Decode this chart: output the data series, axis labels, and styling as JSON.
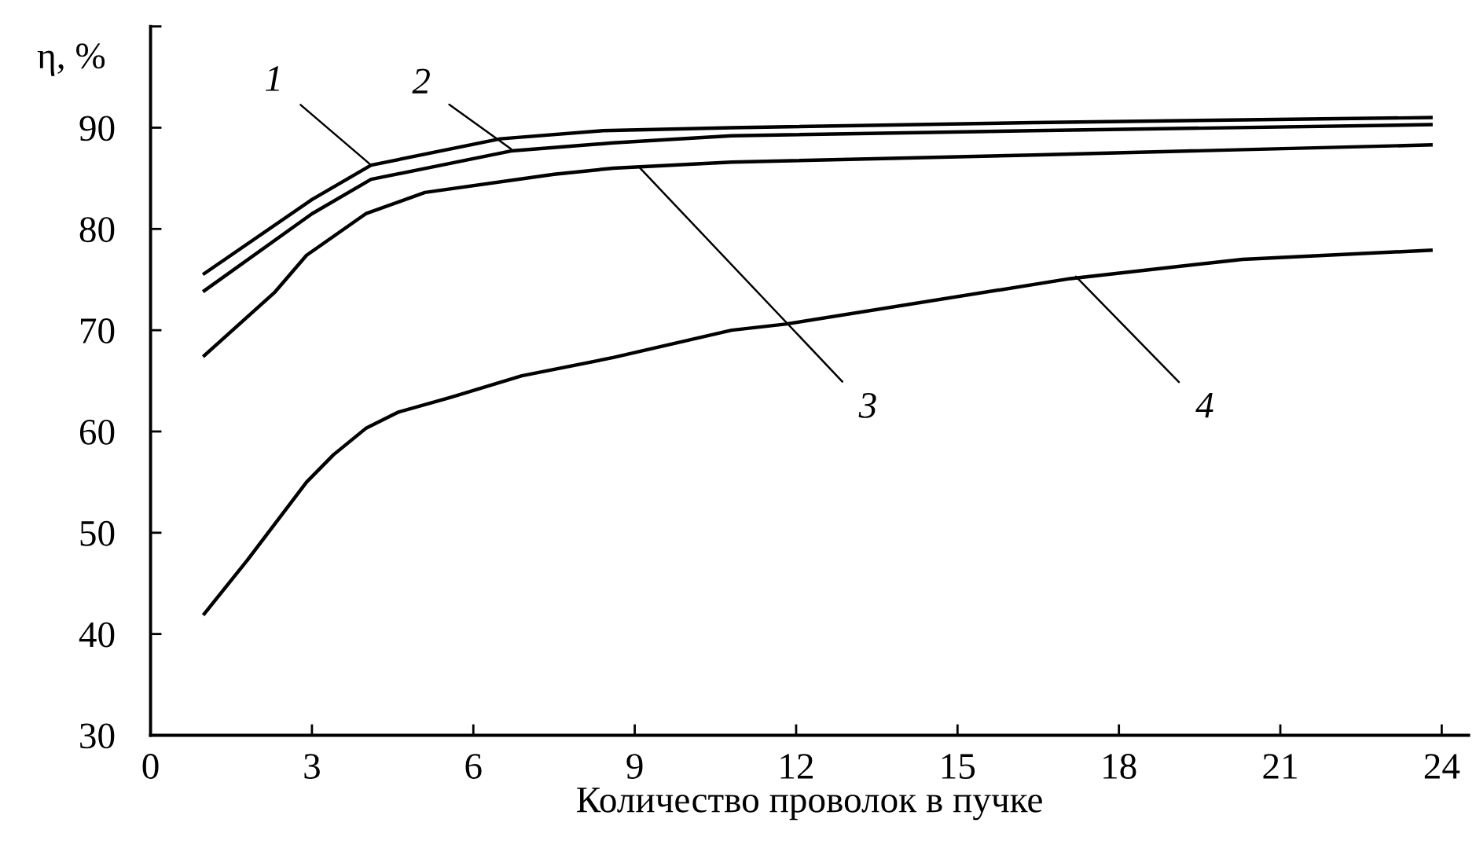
{
  "chart_data": {
    "type": "line",
    "xlabel": "Количество проволок в пучке",
    "ylabel": "η, %",
    "xlim": [
      0,
      24.5
    ],
    "xticks": [
      0,
      3,
      6,
      9,
      12,
      15,
      18,
      21,
      24
    ],
    "ylim": [
      30,
      100
    ],
    "yticks": [
      30,
      40,
      50,
      60,
      70,
      80,
      90,
      {
        "value": 100,
        "label": null
      }
    ],
    "grid": false,
    "legend": false,
    "marker": "none",
    "line_style": "solid",
    "series": [
      {
        "color": "#000000",
        "x": [
          1.0,
          3.0,
          4.1,
          6.5,
          8.4,
          10.8,
          16.4,
          23.8
        ],
        "values": [
          75.6,
          82.9,
          86.3,
          88.9,
          89.7,
          90.0,
          90.5,
          91.0
        ]
      },
      {
        "color": "#000000",
        "x": [
          1.0,
          3.0,
          4.1,
          6.7,
          8.6,
          10.8,
          16.4,
          23.8
        ],
        "values": [
          73.9,
          81.5,
          84.9,
          87.7,
          88.5,
          89.2,
          89.7,
          90.3
        ]
      },
      {
        "color": "#000000",
        "x": [
          1.0,
          2.3,
          2.9,
          4.0,
          5.1,
          7.5,
          8.6,
          10.8,
          16.4,
          23.8
        ],
        "values": [
          67.5,
          73.7,
          77.4,
          81.5,
          83.6,
          85.4,
          86.0,
          86.6,
          87.3,
          88.3
        ]
      },
      {
        "color": "#000000",
        "x": [
          1.0,
          1.8,
          2.9,
          3.4,
          4.0,
          4.6,
          5.6,
          6.9,
          8.6,
          10.8,
          11.8,
          17.1,
          20.3,
          23.8
        ],
        "values": [
          42.0,
          47.3,
          55.0,
          57.7,
          60.3,
          61.9,
          63.4,
          65.5,
          67.3,
          70.0,
          70.6,
          75.1,
          77.0,
          77.9
        ]
      }
    ],
    "annotations": [
      {
        "text": "1",
        "x": 4.1,
        "y": 86.3
      },
      {
        "text": "2",
        "x": 6.7,
        "y": 87.9
      },
      {
        "text": "3",
        "x": 9.1,
        "y": 86.0
      },
      {
        "text": "4",
        "x": 17.2,
        "y": 75.3
      }
    ]
  }
}
